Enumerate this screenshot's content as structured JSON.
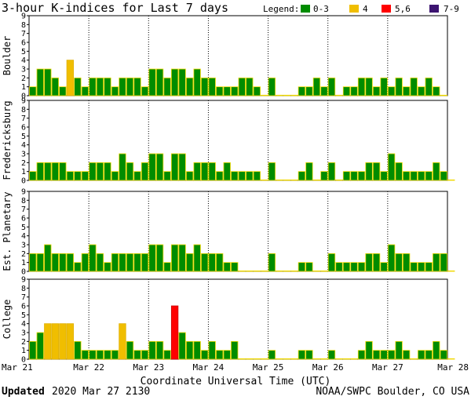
{
  "chart_data": {
    "type": "bar",
    "title": "3-hour K-indices for Last 7 days",
    "xlabel": "Coordinate Universal Time (UTC)",
    "ylim": [
      0,
      9
    ],
    "y_ticks": [
      "0",
      "1",
      "2",
      "3",
      "4",
      "5",
      "6",
      "7",
      "8",
      "9"
    ],
    "date_ticks": [
      "Mar 21",
      "Mar 22",
      "Mar 23",
      "Mar 24",
      "Mar 25",
      "Mar 26",
      "Mar 27",
      "Mar 28"
    ],
    "legend": {
      "label": "Legend:",
      "items": [
        {
          "label": "0-3",
          "color": "#008c00"
        },
        {
          "label": "4",
          "color": "#f0be00"
        },
        {
          "label": "5,6",
          "color": "#ff0000"
        },
        {
          "label": "7-9",
          "color": "#3c1470"
        }
      ]
    },
    "series": [
      {
        "name": "Boulder",
        "values": [
          1,
          3,
          3,
          2,
          1,
          4,
          2,
          1,
          2,
          2,
          2,
          1,
          2,
          2,
          2,
          1,
          3,
          3,
          2,
          3,
          3,
          2,
          3,
          2,
          2,
          1,
          1,
          1,
          2,
          2,
          1,
          0,
          2,
          0,
          0,
          0,
          1,
          1,
          2,
          1,
          2,
          0,
          1,
          1,
          2,
          2,
          1,
          2,
          1,
          2,
          1,
          2,
          1,
          2,
          1,
          0
        ]
      },
      {
        "name": "Fredericksburg",
        "values": [
          1,
          2,
          2,
          2,
          2,
          1,
          1,
          1,
          2,
          2,
          2,
          1,
          3,
          2,
          1,
          2,
          3,
          3,
          1,
          3,
          3,
          1,
          2,
          2,
          2,
          1,
          2,
          1,
          1,
          1,
          1,
          0,
          2,
          0,
          0,
          0,
          1,
          2,
          0,
          1,
          2,
          0,
          1,
          1,
          1,
          2,
          2,
          1,
          3,
          2,
          1,
          1,
          1,
          1,
          2,
          1,
          0
        ]
      },
      {
        "name": "Est. Planetary",
        "values": [
          2,
          2,
          3,
          2,
          2,
          2,
          1,
          2,
          3,
          2,
          1,
          2,
          2,
          2,
          2,
          2,
          3,
          3,
          1,
          3,
          3,
          2,
          3,
          2,
          2,
          2,
          1,
          1,
          0,
          0,
          0,
          0,
          2,
          0,
          0,
          0,
          1,
          1,
          0,
          0,
          2,
          1,
          1,
          1,
          1,
          2,
          2,
          1,
          3,
          2,
          2,
          1,
          1,
          1,
          2,
          2,
          0
        ]
      },
      {
        "name": "College",
        "values": [
          2,
          3,
          4,
          4,
          4,
          4,
          2,
          1,
          1,
          1,
          1,
          1,
          4,
          2,
          1,
          1,
          2,
          2,
          1,
          6,
          3,
          2,
          2,
          1,
          2,
          1,
          1,
          2,
          0,
          0,
          0,
          0,
          1,
          0,
          0,
          0,
          1,
          1,
          0,
          0,
          1,
          0,
          0,
          0,
          1,
          2,
          1,
          1,
          1,
          2,
          1,
          0,
          1,
          1,
          2,
          1,
          0
        ]
      }
    ]
  },
  "footer": {
    "updated_label": "Updated",
    "updated_value": "2020 Mar 27 2130",
    "source": "NOAA/SWPC Boulder, CO USA"
  }
}
